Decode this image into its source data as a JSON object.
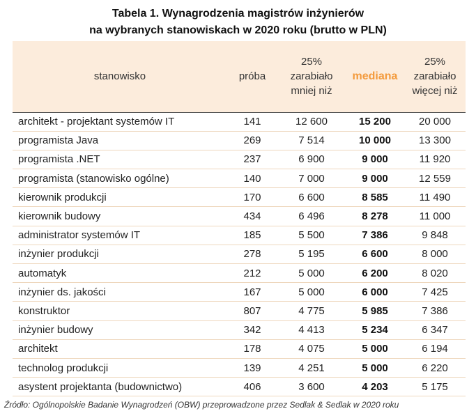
{
  "title": {
    "line1": "Tabela 1. Wynagrodzenia magistrów inżynierów",
    "line2": "na wybranych stanowiskach w 2020 roku (brutto w PLN)"
  },
  "table": {
    "headers": {
      "position": "stanowisko",
      "sample": "próba",
      "p25": [
        "25%",
        "zarabiało",
        "mniej niż"
      ],
      "median": "mediana",
      "p75": [
        "25%",
        "zarabiało",
        "więcej niż"
      ]
    },
    "rows": [
      {
        "position": "architekt - projektant systemów IT",
        "sample": "141",
        "p25": "12 600",
        "median": "15 200",
        "p75": "20 000"
      },
      {
        "position": "programista Java",
        "sample": "269",
        "p25": "7 514",
        "median": "10 000",
        "p75": "13 300"
      },
      {
        "position": "programista .NET",
        "sample": "237",
        "p25": "6 900",
        "median": "9 000",
        "p75": "11 920"
      },
      {
        "position": "programista (stanowisko ogólne)",
        "sample": "140",
        "p25": "7 000",
        "median": "9 000",
        "p75": "12 559"
      },
      {
        "position": "kierownik produkcji",
        "sample": "170",
        "p25": "6 600",
        "median": "8 585",
        "p75": "11 490"
      },
      {
        "position": "kierownik budowy",
        "sample": "434",
        "p25": "6 496",
        "median": "8 278",
        "p75": "11 000"
      },
      {
        "position": "administrator systemów IT",
        "sample": "185",
        "p25": "5 500",
        "median": "7 386",
        "p75": "9 848"
      },
      {
        "position": "inżynier produkcji",
        "sample": "278",
        "p25": "5 195",
        "median": "6 600",
        "p75": "8 000"
      },
      {
        "position": "automatyk",
        "sample": "212",
        "p25": "5 000",
        "median": "6 200",
        "p75": "8 020"
      },
      {
        "position": "inżynier ds. jakości",
        "sample": "167",
        "p25": "5 000",
        "median": "6 000",
        "p75": "7 425"
      },
      {
        "position": "konstruktor",
        "sample": "807",
        "p25": "4 775",
        "median": "5 985",
        "p75": "7 386"
      },
      {
        "position": "inżynier budowy",
        "sample": "342",
        "p25": "4 413",
        "median": "5 234",
        "p75": "6 347"
      },
      {
        "position": "architekt",
        "sample": "178",
        "p25": "4 075",
        "median": "5 000",
        "p75": "6 194"
      },
      {
        "position": "technolog produkcji",
        "sample": "139",
        "p25": "4 251",
        "median": "5 000",
        "p75": "6 220"
      },
      {
        "position": "asystent projektanta (budownictwo)",
        "sample": "406",
        "p25": "3 600",
        "median": "4 203",
        "p75": "5 175"
      }
    ]
  },
  "source": "Źródło: Ogólnopolskie Badanie Wynagrodzeń (OBW) przeprowadzone przez Sedlak & Sedlak w 2020 roku",
  "colors": {
    "header_bg": "#fcecdc",
    "median_header": "#f39a3c",
    "row_divider": "#eed7bd"
  }
}
